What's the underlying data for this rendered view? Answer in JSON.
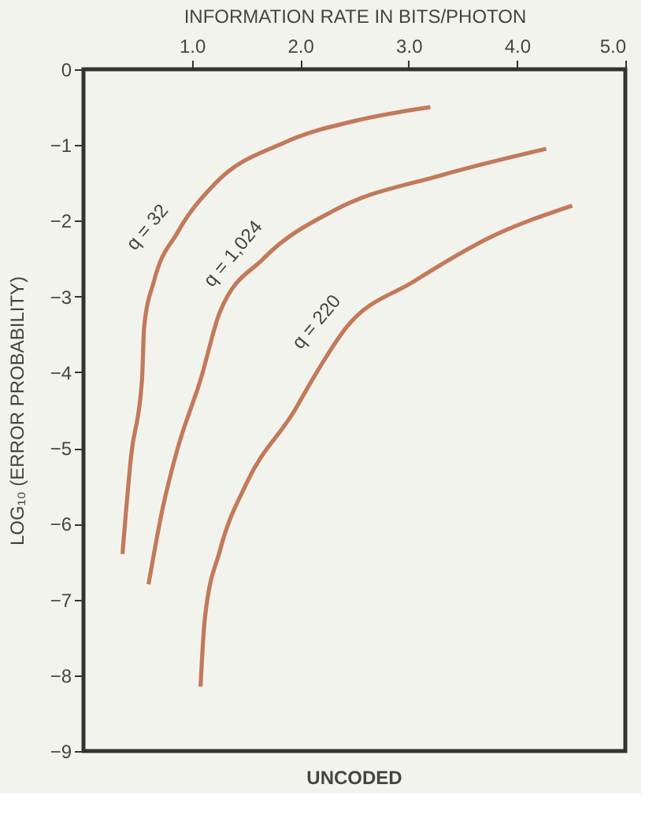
{
  "chart_data": {
    "type": "line",
    "xlabel": "INFORMATION RATE IN BITS/PHOTON",
    "ylabel": "LOG₁₀ (ERROR PROBABILITY)",
    "xlim": [
      0,
      5.0
    ],
    "xticks": [
      {
        "value": 1,
        "label": "1.0"
      },
      {
        "value": 2,
        "label": "2.0"
      },
      {
        "value": 3,
        "label": "3.0"
      },
      {
        "value": 4,
        "label": "4.0"
      },
      {
        "value": 5,
        "label": "5.0"
      }
    ],
    "ylim": [
      -9,
      0
    ],
    "yticks": [
      0,
      -1,
      -2,
      -3,
      -4,
      -5,
      -6,
      -7,
      -8,
      -9
    ],
    "grid": false,
    "marker": "none",
    "line_style": "solid",
    "series": [
      {
        "color": "#c27a5a",
        "x": [
          0.36,
          0.44,
          0.54,
          0.56,
          0.65,
          0.87,
          1.22,
          1.85,
          2.57,
          3.2
        ],
        "values": [
          -6.4,
          -5.1,
          -4.1,
          -3.4,
          -2.8,
          -2.15,
          -1.5,
          -0.97,
          -0.66,
          -0.5
        ]
      },
      {
        "color": "#c27a5a",
        "x": [
          0.6,
          0.73,
          0.87,
          1.08,
          1.26,
          1.66,
          2.33,
          3.3,
          4.27
        ],
        "values": [
          -6.8,
          -5.8,
          -5.0,
          -4.1,
          -3.2,
          -2.5,
          -1.85,
          -1.4,
          -1.05
        ]
      },
      {
        "color": "#c27a5a",
        "x": [
          1.08,
          1.12,
          1.26,
          1.51,
          1.95,
          2.09,
          2.43,
          3.05,
          3.78,
          4.51
        ],
        "values": [
          -8.15,
          -7.25,
          -6.35,
          -5.45,
          -4.5,
          -4.15,
          -3.4,
          -2.8,
          -2.2,
          -1.8
        ]
      }
    ],
    "annotations": [
      {
        "text": "q = 32",
        "x": 0.87,
        "y": -2.15
      },
      {
        "text": "q = 1,024",
        "x": 1.66,
        "y": -2.5
      },
      {
        "text": "q = 220",
        "x": 2.43,
        "y": -3.4
      },
      "UNCODED"
    ]
  }
}
